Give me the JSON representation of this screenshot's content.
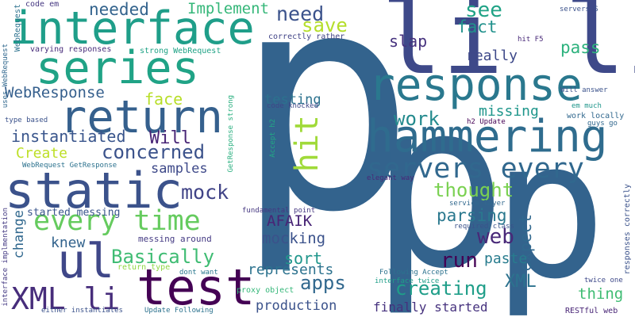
{
  "words": [
    {
      "text": "p",
      "color": "#33638d"
    },
    {
      "text": "p",
      "color": "#33638d"
    },
    {
      "text": "p",
      "color": "#33638d"
    },
    {
      "text": "li li",
      "color": "#3e4989"
    },
    {
      "text": "response",
      "color": "#2a788e"
    },
    {
      "text": "hammering",
      "color": "#2f6c8e"
    },
    {
      "text": "servers every",
      "color": "#31688e"
    },
    {
      "text": "interface",
      "color": "#1f9e89"
    },
    {
      "text": "series",
      "color": "#20a386"
    },
    {
      "text": "return",
      "color": "#35608d"
    },
    {
      "text": "static",
      "color": "#3b528b"
    },
    {
      "text": "every time",
      "color": "#65cb5e"
    },
    {
      "text": "test",
      "color": "#440154"
    },
    {
      "text": "ul",
      "color": "#3f4788"
    },
    {
      "text": "XML li",
      "color": "#472d7b"
    },
    {
      "text": "Basically",
      "color": "#3fbc73"
    },
    {
      "text": "concerned",
      "color": "#3b528b"
    },
    {
      "text": "instantiated",
      "color": "#39558c"
    },
    {
      "text": "Will",
      "color": "#482576"
    },
    {
      "text": "Create",
      "color": "#bddf26"
    },
    {
      "text": "samples",
      "color": "#3e4989"
    },
    {
      "text": "mock",
      "color": "#414487"
    },
    {
      "text": "WebResponse",
      "color": "#355f8d"
    },
    {
      "text": "face",
      "color": "#b8de29"
    },
    {
      "text": "testing",
      "color": "#2c728e"
    },
    {
      "text": "hit",
      "color": "#a0da39"
    },
    {
      "text": "needed",
      "color": "#33638d"
    },
    {
      "text": "Implement",
      "color": "#35b779"
    },
    {
      "text": "need",
      "color": "#3b528b"
    },
    {
      "text": "save",
      "color": "#b5de2b"
    },
    {
      "text": "see",
      "color": "#20a386"
    },
    {
      "text": "fact",
      "color": "#21918c"
    },
    {
      "text": "slap",
      "color": "#46327e"
    },
    {
      "text": "pass",
      "color": "#2db27d"
    },
    {
      "text": "really",
      "color": "#3e4989"
    },
    {
      "text": "missing",
      "color": "#1f968b"
    },
    {
      "text": "work",
      "color": "#238a8d"
    },
    {
      "text": "thought",
      "color": "#7ad151"
    },
    {
      "text": "parsing",
      "color": "#2a788e"
    },
    {
      "text": "expect",
      "color": "#31688e"
    },
    {
      "text": "web",
      "color": "#482878"
    },
    {
      "text": "run",
      "color": "#440154"
    },
    {
      "text": "creating",
      "color": "#1f9e89"
    },
    {
      "text": "XML",
      "color": "#2c728e"
    },
    {
      "text": "paste",
      "color": "#287c8e"
    },
    {
      "text": "thing",
      "color": "#3fbc73"
    },
    {
      "text": "apps",
      "color": "#31688e"
    },
    {
      "text": "represents",
      "color": "#2c728e"
    },
    {
      "text": "production",
      "color": "#3b528b"
    },
    {
      "text": "finally started",
      "color": "#46327e"
    },
    {
      "text": "sort",
      "color": "#1f968b"
    },
    {
      "text": "AFAIK",
      "color": "#482576"
    },
    {
      "text": "mocking",
      "color": "#3b528b"
    },
    {
      "text": "knew",
      "color": "#33638d"
    },
    {
      "text": "change",
      "color": "#31688e"
    },
    {
      "text": "started messing",
      "color": "#39558c"
    },
    {
      "text": "messing around",
      "color": "#443a83"
    },
    {
      "text": "code em",
      "color": "#453781"
    },
    {
      "text": "varying responses",
      "color": "#472c7a"
    },
    {
      "text": "strong WebRequest",
      "color": "#20a386"
    },
    {
      "text": "uses WebRequest",
      "color": "#31688e"
    },
    {
      "text": "WebRequest",
      "color": "#2c728e"
    },
    {
      "text": "correctly rather",
      "color": "#414487"
    },
    {
      "text": "code knocked",
      "color": "#3f4788"
    },
    {
      "text": "Accept h2",
      "color": "#22a884"
    },
    {
      "text": "GetResponse strong",
      "color": "#29af7f"
    },
    {
      "text": "type based",
      "color": "#3b528b"
    },
    {
      "text": "WebRequest GetResponse",
      "color": "#2c728e"
    },
    {
      "text": "servers S",
      "color": "#3b528b"
    },
    {
      "text": "hit F5",
      "color": "#482878"
    },
    {
      "text": "Will answer",
      "color": "#3b528b"
    },
    {
      "text": "em much",
      "color": "#1f968b"
    },
    {
      "text": "work locally",
      "color": "#31688e"
    },
    {
      "text": "h2 Update",
      "color": "#440154"
    },
    {
      "text": "guys go",
      "color": "#31688e"
    },
    {
      "text": "elegant way",
      "color": "#482878"
    },
    {
      "text": "fundamental point",
      "color": "#453781"
    },
    {
      "text": "service layer",
      "color": "#31688e"
    },
    {
      "text": "required class",
      "color": "#3b528b"
    },
    {
      "text": "return type",
      "color": "#8fd744"
    },
    {
      "text": "dont want",
      "color": "#2a788e"
    },
    {
      "text": "proxy object",
      "color": "#35b779"
    },
    {
      "text": "Following Accept",
      "color": "#2c728e"
    },
    {
      "text": "interface twice",
      "color": "#1f9e89"
    },
    {
      "text": "twice one",
      "color": "#3e4989"
    },
    {
      "text": "responses correctly",
      "color": "#3b528b"
    },
    {
      "text": "RESTful web",
      "color": "#482576"
    },
    {
      "text": "interface implmentation",
      "color": "#443a83"
    },
    {
      "text": "either instantiates",
      "color": "#3b528b"
    },
    {
      "text": "Update Following",
      "color": "#2c728e"
    }
  ]
}
